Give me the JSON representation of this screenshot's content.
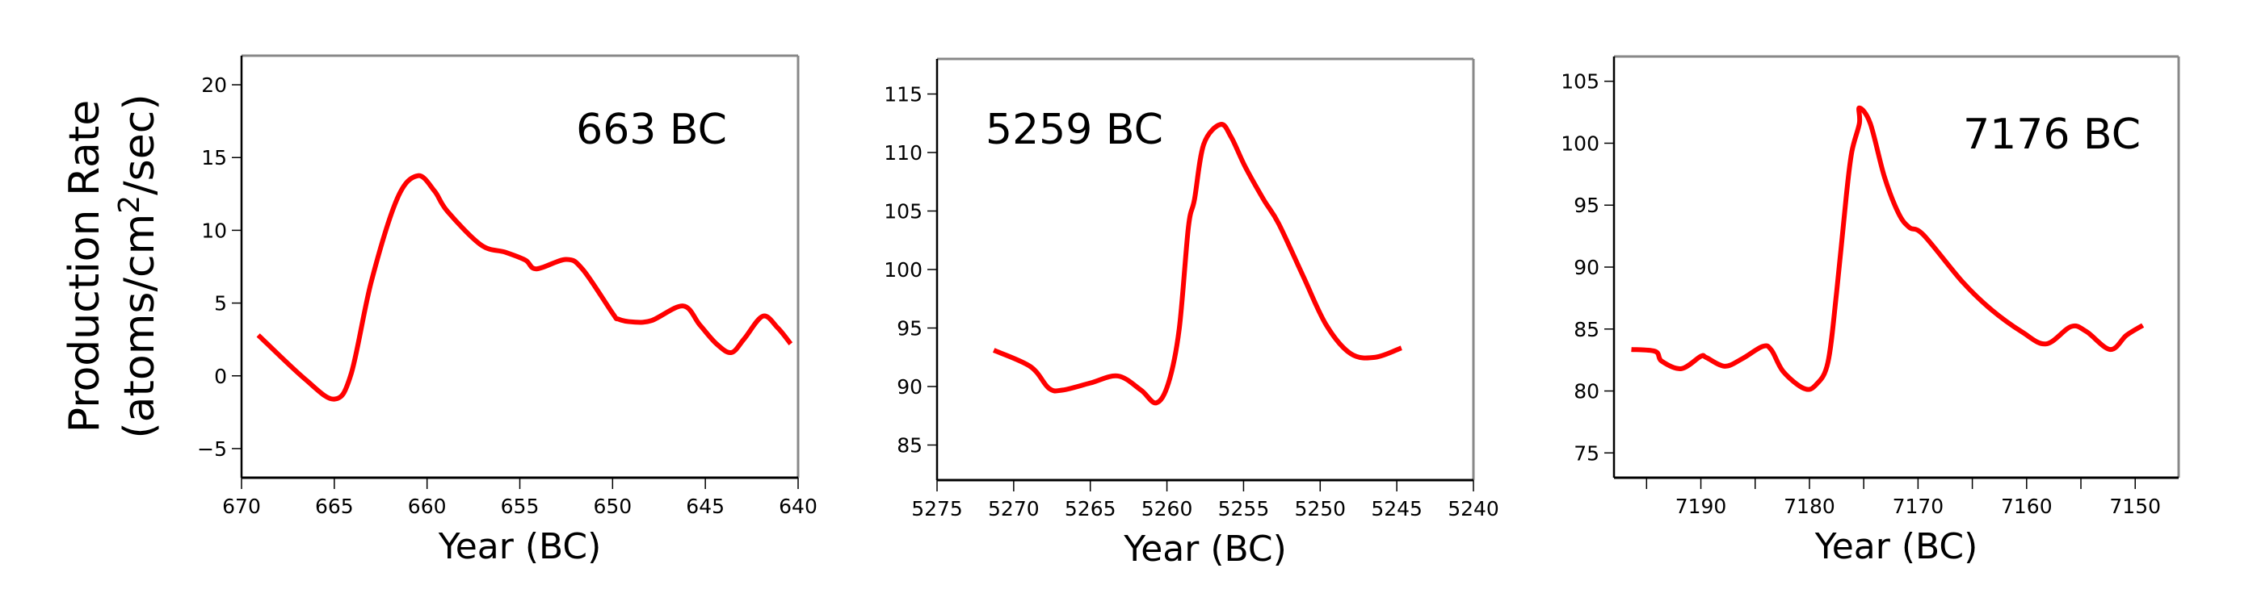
{
  "ylabel_line1": "Production Rate",
  "ylabel_line2_pre": "(atoms/cm",
  "ylabel_sup": "2",
  "ylabel_line2_post": "/sec)",
  "line_color": "#ff0000",
  "chart_data": [
    {
      "type": "line",
      "title": "663 BC",
      "xlabel": "Year (BC)",
      "ylabel": "Production Rate (atoms/cm2/sec)",
      "xlim": [
        670,
        640
      ],
      "ylim": [
        -7,
        22
      ],
      "xticks": [
        670,
        665,
        660,
        655,
        650,
        645,
        640
      ],
      "xtick_labels": [
        "670",
        "665",
        "660",
        "655",
        "650",
        "645",
        "640"
      ],
      "minor_xticks": [],
      "yticks": [
        -5,
        0,
        5,
        10,
        15,
        20
      ],
      "ytick_labels": [
        "−5",
        "0",
        "5",
        "10",
        "15",
        "20"
      ],
      "title_position": "top-right",
      "x": [
        669.1,
        666.6,
        665.0,
        664.1,
        663.0,
        661.6,
        660.5,
        659.6,
        658.9,
        657.1,
        655.8,
        654.7,
        654.1,
        652.5,
        651.6,
        650.0,
        649.7,
        648.9,
        647.9,
        646.2,
        645.3,
        644.4,
        643.6,
        642.9,
        641.9,
        641.1,
        640.4
      ],
      "y": [
        2.8,
        -0.2,
        -1.6,
        0.1,
        6.5,
        12.2,
        13.75,
        12.7,
        11.3,
        9.0,
        8.5,
        7.95,
        7.35,
        8.0,
        7.3,
        4.3,
        3.9,
        3.7,
        3.8,
        4.8,
        3.5,
        2.2,
        1.6,
        2.55,
        4.1,
        3.3,
        2.2
      ]
    },
    {
      "type": "line",
      "title": "5259 BC",
      "xlabel": "Year (BC)",
      "ylabel": "",
      "xlim": [
        5275,
        5240
      ],
      "ylim": [
        82,
        118
      ],
      "xticks": [
        5275,
        5270,
        5265,
        5260,
        5255,
        5250,
        5245,
        5240
      ],
      "xtick_labels": [
        "5275",
        "5270",
        "5265",
        "5260",
        "5255",
        "5250",
        "5245",
        "5240"
      ],
      "minor_xticks": [],
      "yticks": [
        85,
        90,
        95,
        100,
        105,
        110,
        115
      ],
      "ytick_labels": [
        "85",
        "90",
        "95",
        "100",
        "105",
        "110",
        "115"
      ],
      "title_position": "top-left",
      "x": [
        5271.3,
        5268.9,
        5267.7,
        5266.8,
        5265.0,
        5263.2,
        5261.7,
        5260.7,
        5259.9,
        5259.2,
        5258.6,
        5258.2,
        5257.6,
        5256.5,
        5255.8,
        5254.9,
        5253.7,
        5252.7,
        5251.1,
        5249.6,
        5248.0,
        5246.4,
        5244.7
      ],
      "y": [
        93.1,
        91.7,
        89.85,
        89.7,
        90.3,
        90.9,
        89.7,
        88.6,
        90.3,
        94.9,
        103.6,
        106.0,
        110.7,
        112.4,
        111.3,
        108.8,
        106.0,
        103.9,
        99.4,
        95.25,
        92.8,
        92.5,
        93.3
      ]
    },
    {
      "type": "line",
      "title": "7176 BC",
      "xlabel": "Year (BC)",
      "ylabel": "",
      "xlim": [
        7198,
        7146
      ],
      "ylim": [
        73,
        107
      ],
      "xticks": [
        7190,
        7180,
        7170,
        7160,
        7150
      ],
      "xtick_labels": [
        "7190",
        "7180",
        "7170",
        "7160",
        "7150"
      ],
      "minor_xticks": [
        7195,
        7185,
        7175,
        7165,
        7155
      ],
      "yticks": [
        75,
        80,
        85,
        90,
        95,
        100,
        105
      ],
      "ytick_labels": [
        "75",
        "80",
        "85",
        "90",
        "95",
        "100",
        "105"
      ],
      "title_position": "top-right",
      "x": [
        7196.4,
        7194.2,
        7193.6,
        7191.8,
        7190.0,
        7189.5,
        7187.8,
        7186.2,
        7184.3,
        7183.5,
        7182.4,
        7180.5,
        7179.4,
        7178.3,
        7177.5,
        7176.6,
        7176.1,
        7175.4,
        7175.4,
        7174.4,
        7173.1,
        7171.8,
        7170.8,
        7169.5,
        7165.9,
        7163.3,
        7160.4,
        7158.2,
        7155.9,
        7154.5,
        7152.3,
        7150.8,
        7149.3
      ],
      "y": [
        83.35,
        83.2,
        82.4,
        81.8,
        82.8,
        82.7,
        82.0,
        82.6,
        83.6,
        83.3,
        81.55,
        80.2,
        80.5,
        82.3,
        87.95,
        95.8,
        99.3,
        101.6,
        102.85,
        101.6,
        97.3,
        94.35,
        93.2,
        92.6,
        88.8,
        86.6,
        84.75,
        83.8,
        85.2,
        84.8,
        83.35,
        84.5,
        85.3
      ]
    }
  ]
}
